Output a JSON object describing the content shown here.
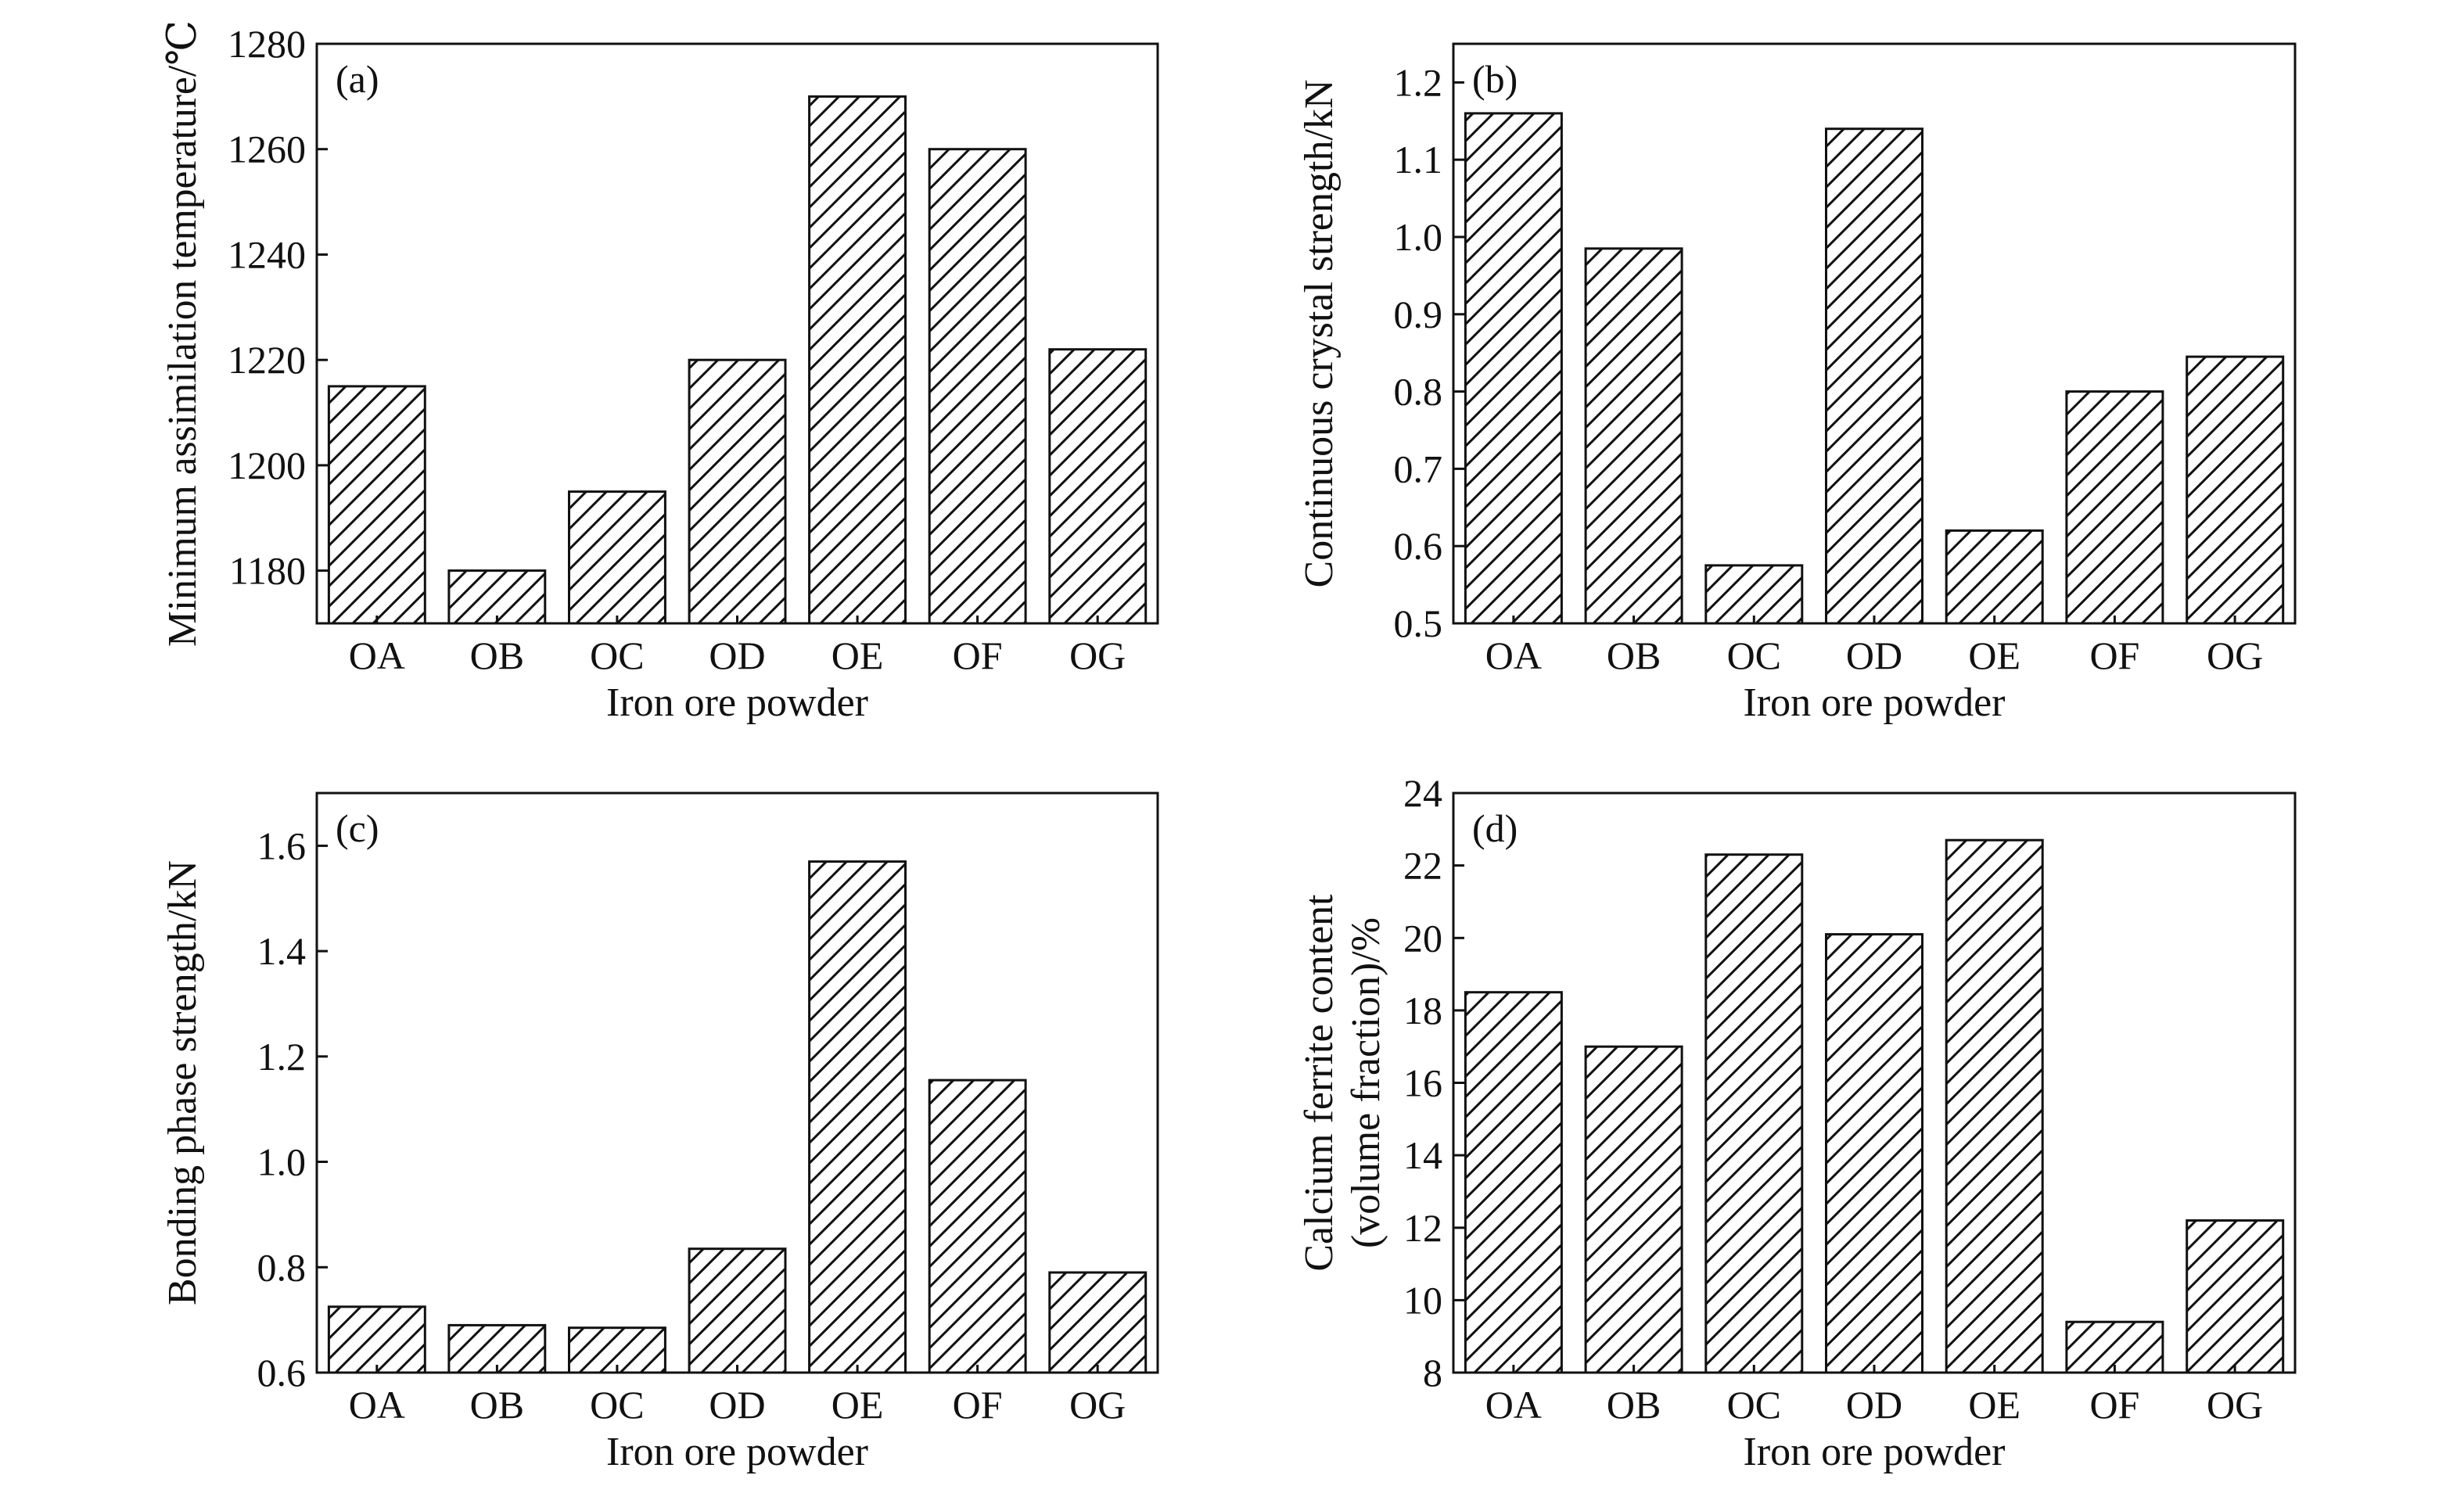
{
  "colors": {
    "ink": "#111111",
    "background": "#ffffff",
    "hatch": "#111111"
  },
  "chart_data": [
    {
      "type": "bar",
      "panel_label": "(a)",
      "title": "",
      "xlabel": "Iron ore powder",
      "ylabel": "Minimum assimilation temperature/℃",
      "ylim": [
        1170,
        1280
      ],
      "yticks": [
        "1180",
        "1200",
        "1220",
        "1240",
        "1260",
        "1280"
      ],
      "categories": [
        "OA",
        "OB",
        "OC",
        "OD",
        "OE",
        "OF",
        "OG"
      ],
      "values": [
        1215,
        1180,
        1195,
        1220,
        1270,
        1260,
        1222
      ],
      "bar_fill": "diagonal-hatch",
      "grid": false
    },
    {
      "type": "bar",
      "panel_label": "(b)",
      "title": "",
      "xlabel": "Iron ore powder",
      "ylabel": "Continuous crystal strength/kN",
      "ylim": [
        0.5,
        1.25
      ],
      "yticks": [
        "0.5",
        "0.6",
        "0.7",
        "0.8",
        "0.9",
        "1.0",
        "1.1",
        "1.2"
      ],
      "categories": [
        "OA",
        "OB",
        "OC",
        "OD",
        "OE",
        "OF",
        "OG"
      ],
      "values": [
        1.16,
        0.985,
        0.575,
        1.14,
        0.62,
        0.8,
        0.845
      ],
      "bar_fill": "diagonal-hatch",
      "grid": false
    },
    {
      "type": "bar",
      "panel_label": "(c)",
      "title": "",
      "xlabel": "Iron ore powder",
      "ylabel": "Bonding phase strength/kN",
      "ylim": [
        0.6,
        1.7
      ],
      "yticks": [
        "0.6",
        "0.8",
        "1.0",
        "1.2",
        "1.4",
        "1.6"
      ],
      "categories": [
        "OA",
        "OB",
        "OC",
        "OD",
        "OE",
        "OF",
        "OG"
      ],
      "values": [
        0.725,
        0.69,
        0.685,
        0.835,
        1.57,
        1.155,
        0.79
      ],
      "bar_fill": "diagonal-hatch",
      "grid": false
    },
    {
      "type": "bar",
      "panel_label": "(d)",
      "title": "",
      "xlabel": "Iron ore powder",
      "ylabel": "Calcium ferrite content",
      "ylabel_line2": "(volume fraction)/%",
      "ylim": [
        8,
        24
      ],
      "yticks": [
        "8",
        "10",
        "12",
        "14",
        "16",
        "18",
        "20",
        "22",
        "24"
      ],
      "categories": [
        "OA",
        "OB",
        "OC",
        "OD",
        "OE",
        "OF",
        "OG"
      ],
      "values": [
        18.5,
        17.0,
        22.3,
        20.1,
        22.7,
        9.4,
        12.2
      ],
      "bar_fill": "diagonal-hatch",
      "grid": false
    }
  ]
}
